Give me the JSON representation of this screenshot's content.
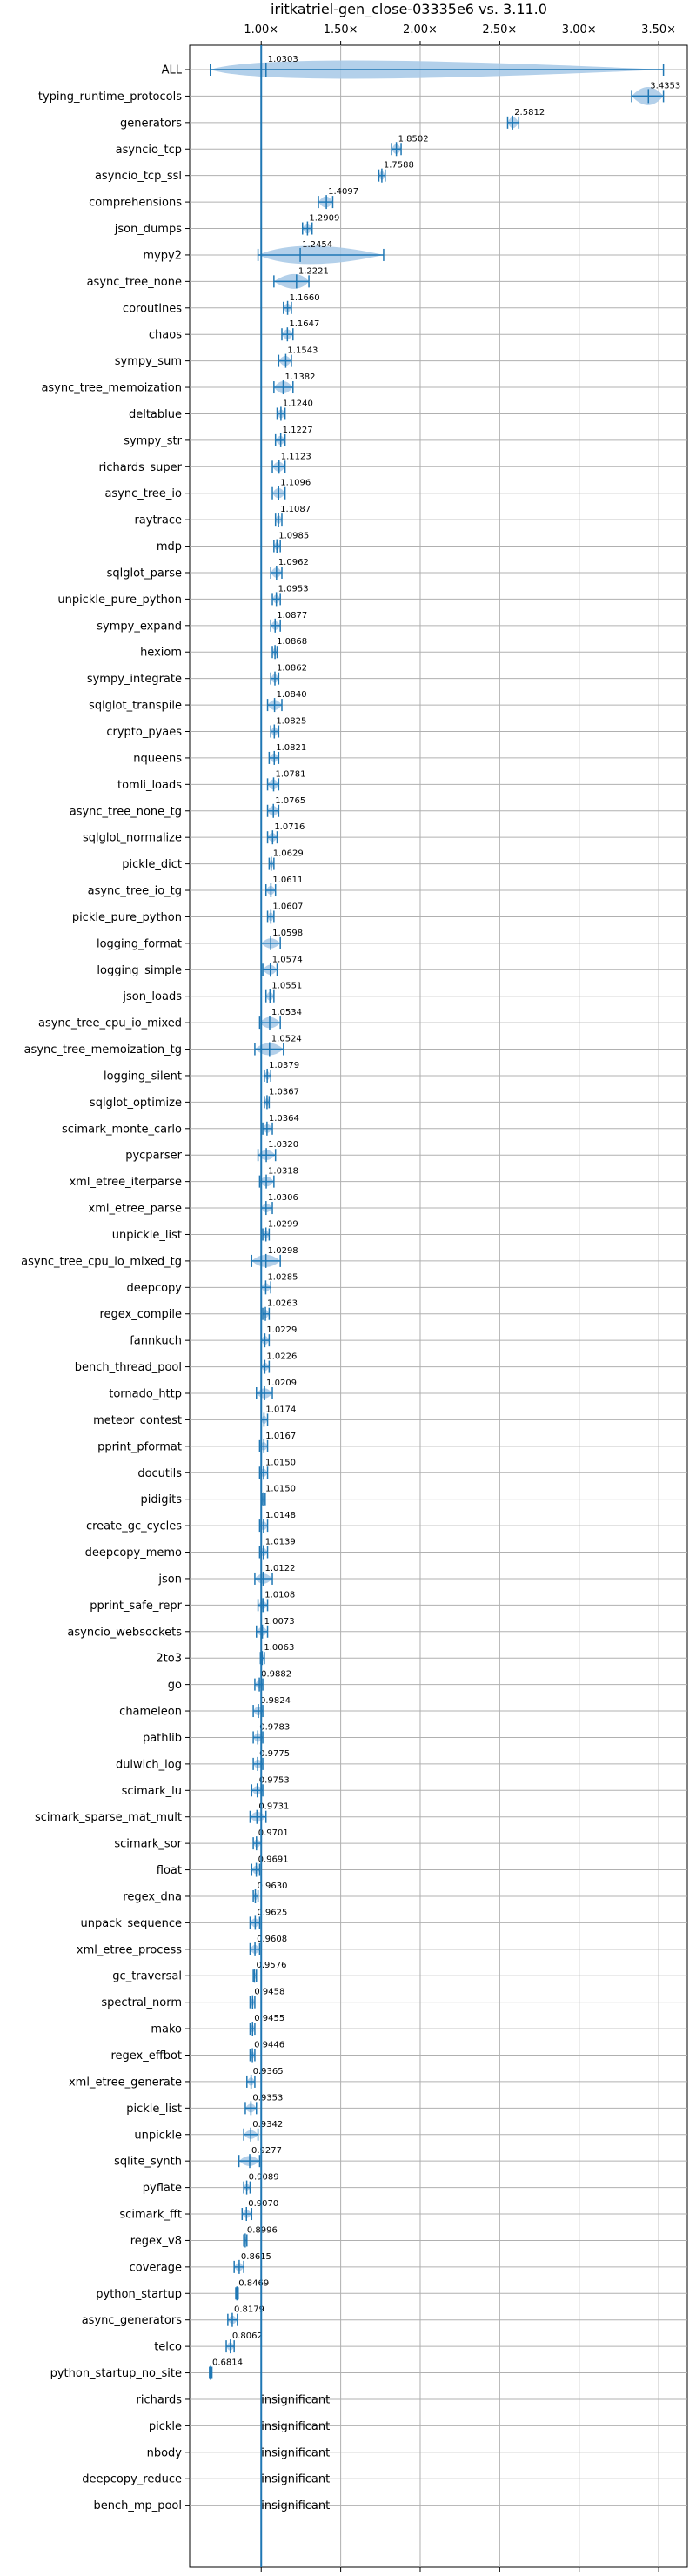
{
  "chart_data": {
    "type": "violin",
    "title": "iritkatriel-gen_close-03335e6 vs. 3.11.0",
    "x_ticks": [
      "1.00×",
      "1.50×",
      "2.00×",
      "2.50×",
      "3.00×",
      "3.50×"
    ],
    "x_tick_values": [
      1.0,
      1.5,
      2.0,
      2.5,
      3.0,
      3.5
    ],
    "xlim": [
      0.55,
      3.68
    ],
    "reference_line": 1.0,
    "grid": true,
    "colors": {
      "violin_fill": "#a6c8e6",
      "violin_line": "#1f77b4",
      "reference": "#1f77b4",
      "grid": "#b0b0b0"
    },
    "benchmarks": [
      {
        "name": "ALL",
        "value": 1.0303,
        "label": "1.0303",
        "min": 0.68,
        "max": 3.53,
        "spread": 0.14
      },
      {
        "name": "typing_runtime_protocols",
        "value": 3.4353,
        "label": "3.4353",
        "min": 3.33,
        "max": 3.53,
        "spread": 0.1
      },
      {
        "name": "generators",
        "value": 2.5812,
        "label": "2.5812",
        "min": 2.55,
        "max": 2.62,
        "spread": 0.04
      },
      {
        "name": "asyncio_tcp",
        "value": 1.8502,
        "label": "1.8502",
        "min": 1.82,
        "max": 1.88,
        "spread": 0.03
      },
      {
        "name": "asyncio_tcp_ssl",
        "value": 1.7588,
        "label": "1.7588",
        "min": 1.74,
        "max": 1.78,
        "spread": 0.02
      },
      {
        "name": "comprehensions",
        "value": 1.4097,
        "label": "1.4097",
        "min": 1.36,
        "max": 1.45,
        "spread": 0.04
      },
      {
        "name": "json_dumps",
        "value": 1.2909,
        "label": "1.2909",
        "min": 1.26,
        "max": 1.32,
        "spread": 0.03
      },
      {
        "name": "mypy2",
        "value": 1.2454,
        "label": "1.2454",
        "min": 0.98,
        "max": 1.77,
        "spread": 0.25
      },
      {
        "name": "async_tree_none",
        "value": 1.2221,
        "label": "1.2221",
        "min": 1.08,
        "max": 1.3,
        "spread": 0.07
      },
      {
        "name": "coroutines",
        "value": 1.166,
        "label": "1.1660",
        "min": 1.14,
        "max": 1.19,
        "spread": 0.02
      },
      {
        "name": "chaos",
        "value": 1.1647,
        "label": "1.1647",
        "min": 1.13,
        "max": 1.2,
        "spread": 0.03
      },
      {
        "name": "sympy_sum",
        "value": 1.1543,
        "label": "1.1543",
        "min": 1.11,
        "max": 1.19,
        "spread": 0.03
      },
      {
        "name": "async_tree_memoization",
        "value": 1.1382,
        "label": "1.1382",
        "min": 1.08,
        "max": 1.2,
        "spread": 0.05
      },
      {
        "name": "deltablue",
        "value": 1.124,
        "label": "1.1240",
        "min": 1.1,
        "max": 1.15,
        "spread": 0.02
      },
      {
        "name": "sympy_str",
        "value": 1.1227,
        "label": "1.1227",
        "min": 1.09,
        "max": 1.15,
        "spread": 0.02
      },
      {
        "name": "richards_super",
        "value": 1.1123,
        "label": "1.1123",
        "min": 1.07,
        "max": 1.15,
        "spread": 0.03
      },
      {
        "name": "async_tree_io",
        "value": 1.1096,
        "label": "1.1096",
        "min": 1.07,
        "max": 1.15,
        "spread": 0.03
      },
      {
        "name": "raytrace",
        "value": 1.1087,
        "label": "1.1087",
        "min": 1.09,
        "max": 1.13,
        "spread": 0.02
      },
      {
        "name": "mdp",
        "value": 1.0985,
        "label": "1.0985",
        "min": 1.08,
        "max": 1.12,
        "spread": 0.015
      },
      {
        "name": "sqlglot_parse",
        "value": 1.0962,
        "label": "1.0962",
        "min": 1.06,
        "max": 1.13,
        "spread": 0.03
      },
      {
        "name": "unpickle_pure_python",
        "value": 1.0953,
        "label": "1.0953",
        "min": 1.07,
        "max": 1.12,
        "spread": 0.02
      },
      {
        "name": "sympy_expand",
        "value": 1.0877,
        "label": "1.0877",
        "min": 1.06,
        "max": 1.12,
        "spread": 0.02
      },
      {
        "name": "hexiom",
        "value": 1.0868,
        "label": "1.0868",
        "min": 1.07,
        "max": 1.1,
        "spread": 0.015
      },
      {
        "name": "sympy_integrate",
        "value": 1.0862,
        "label": "1.0862",
        "min": 1.06,
        "max": 1.11,
        "spread": 0.02
      },
      {
        "name": "sqlglot_transpile",
        "value": 1.084,
        "label": "1.0840",
        "min": 1.04,
        "max": 1.13,
        "spread": 0.03
      },
      {
        "name": "crypto_pyaes",
        "value": 1.0825,
        "label": "1.0825",
        "min": 1.06,
        "max": 1.11,
        "spread": 0.02
      },
      {
        "name": "nqueens",
        "value": 1.0821,
        "label": "1.0821",
        "min": 1.05,
        "max": 1.11,
        "spread": 0.02
      },
      {
        "name": "tomli_loads",
        "value": 1.0781,
        "label": "1.0781",
        "min": 1.04,
        "max": 1.11,
        "spread": 0.03
      },
      {
        "name": "async_tree_none_tg",
        "value": 1.0765,
        "label": "1.0765",
        "min": 1.04,
        "max": 1.11,
        "spread": 0.03
      },
      {
        "name": "sqlglot_normalize",
        "value": 1.0716,
        "label": "1.0716",
        "min": 1.04,
        "max": 1.1,
        "spread": 0.02
      },
      {
        "name": "pickle_dict",
        "value": 1.0629,
        "label": "1.0629",
        "min": 1.05,
        "max": 1.08,
        "spread": 0.015
      },
      {
        "name": "async_tree_io_tg",
        "value": 1.0611,
        "label": "1.0611",
        "min": 1.03,
        "max": 1.09,
        "spread": 0.02
      },
      {
        "name": "pickle_pure_python",
        "value": 1.0607,
        "label": "1.0607",
        "min": 1.04,
        "max": 1.08,
        "spread": 0.02
      },
      {
        "name": "logging_format",
        "value": 1.0598,
        "label": "1.0598",
        "min": 1.0,
        "max": 1.12,
        "spread": 0.03
      },
      {
        "name": "logging_simple",
        "value": 1.0574,
        "label": "1.0574",
        "min": 1.01,
        "max": 1.1,
        "spread": 0.03
      },
      {
        "name": "json_loads",
        "value": 1.0551,
        "label": "1.0551",
        "min": 1.03,
        "max": 1.08,
        "spread": 0.02
      },
      {
        "name": "async_tree_cpu_io_mixed",
        "value": 1.0534,
        "label": "1.0534",
        "min": 0.99,
        "max": 1.12,
        "spread": 0.04
      },
      {
        "name": "async_tree_memoization_tg",
        "value": 1.0524,
        "label": "1.0524",
        "min": 0.96,
        "max": 1.14,
        "spread": 0.05
      },
      {
        "name": "logging_silent",
        "value": 1.0379,
        "label": "1.0379",
        "min": 1.02,
        "max": 1.06,
        "spread": 0.015
      },
      {
        "name": "sqlglot_optimize",
        "value": 1.0367,
        "label": "1.0367",
        "min": 1.02,
        "max": 1.05,
        "spread": 0.015
      },
      {
        "name": "scimark_monte_carlo",
        "value": 1.0364,
        "label": "1.0364",
        "min": 1.01,
        "max": 1.07,
        "spread": 0.02
      },
      {
        "name": "pycparser",
        "value": 1.032,
        "label": "1.0320",
        "min": 0.98,
        "max": 1.09,
        "spread": 0.03
      },
      {
        "name": "xml_etree_iterparse",
        "value": 1.0318,
        "label": "1.0318",
        "min": 0.99,
        "max": 1.08,
        "spread": 0.03
      },
      {
        "name": "xml_etree_parse",
        "value": 1.0306,
        "label": "1.0306",
        "min": 1.0,
        "max": 1.07,
        "spread": 0.02
      },
      {
        "name": "unpickle_list",
        "value": 1.0299,
        "label": "1.0299",
        "min": 1.01,
        "max": 1.05,
        "spread": 0.015
      },
      {
        "name": "async_tree_cpu_io_mixed_tg",
        "value": 1.0298,
        "label": "1.0298",
        "min": 0.94,
        "max": 1.12,
        "spread": 0.05
      },
      {
        "name": "deepcopy",
        "value": 1.0285,
        "label": "1.0285",
        "min": 1.0,
        "max": 1.06,
        "spread": 0.02
      },
      {
        "name": "regex_compile",
        "value": 1.0263,
        "label": "1.0263",
        "min": 1.01,
        "max": 1.05,
        "spread": 0.015
      },
      {
        "name": "fannkuch",
        "value": 1.0229,
        "label": "1.0229",
        "min": 1.0,
        "max": 1.05,
        "spread": 0.02
      },
      {
        "name": "bench_thread_pool",
        "value": 1.0226,
        "label": "1.0226",
        "min": 1.0,
        "max": 1.05,
        "spread": 0.015
      },
      {
        "name": "tornado_http",
        "value": 1.0209,
        "label": "1.0209",
        "min": 0.97,
        "max": 1.07,
        "spread": 0.03
      },
      {
        "name": "meteor_contest",
        "value": 1.0174,
        "label": "1.0174",
        "min": 1.0,
        "max": 1.04,
        "spread": 0.015
      },
      {
        "name": "pprint_pformat",
        "value": 1.0167,
        "label": "1.0167",
        "min": 0.99,
        "max": 1.04,
        "spread": 0.015
      },
      {
        "name": "docutils",
        "value": 1.015,
        "label": "1.0150",
        "min": 0.99,
        "max": 1.04,
        "spread": 0.015
      },
      {
        "name": "pidigits",
        "value": 1.015,
        "label": "1.0150",
        "min": 1.005,
        "max": 1.025,
        "spread": 0.01
      },
      {
        "name": "create_gc_cycles",
        "value": 1.0148,
        "label": "1.0148",
        "min": 0.99,
        "max": 1.04,
        "spread": 0.02
      },
      {
        "name": "deepcopy_memo",
        "value": 1.0139,
        "label": "1.0139",
        "min": 0.99,
        "max": 1.04,
        "spread": 0.015
      },
      {
        "name": "json",
        "value": 1.0122,
        "label": "1.0122",
        "min": 0.96,
        "max": 1.07,
        "spread": 0.03
      },
      {
        "name": "pprint_safe_repr",
        "value": 1.0108,
        "label": "1.0108",
        "min": 0.98,
        "max": 1.04,
        "spread": 0.015
      },
      {
        "name": "asyncio_websockets",
        "value": 1.0073,
        "label": "1.0073",
        "min": 0.97,
        "max": 1.04,
        "spread": 0.02
      },
      {
        "name": "2to3",
        "value": 1.0063,
        "label": "1.0063",
        "min": 0.995,
        "max": 1.02,
        "spread": 0.01
      },
      {
        "name": "go",
        "value": 0.9882,
        "label": "0.9882",
        "min": 0.96,
        "max": 1.01,
        "spread": 0.015
      },
      {
        "name": "chameleon",
        "value": 0.9824,
        "label": "0.9824",
        "min": 0.95,
        "max": 1.01,
        "spread": 0.02
      },
      {
        "name": "pathlib",
        "value": 0.9783,
        "label": "0.9783",
        "min": 0.95,
        "max": 1.01,
        "spread": 0.02
      },
      {
        "name": "dulwich_log",
        "value": 0.9775,
        "label": "0.9775",
        "min": 0.95,
        "max": 1.01,
        "spread": 0.02
      },
      {
        "name": "scimark_lu",
        "value": 0.9753,
        "label": "0.9753",
        "min": 0.94,
        "max": 1.01,
        "spread": 0.02
      },
      {
        "name": "scimark_sparse_mat_mult",
        "value": 0.9731,
        "label": "0.9731",
        "min": 0.93,
        "max": 1.03,
        "spread": 0.03
      },
      {
        "name": "scimark_sor",
        "value": 0.9701,
        "label": "0.9701",
        "min": 0.95,
        "max": 1.0,
        "spread": 0.015
      },
      {
        "name": "float",
        "value": 0.9691,
        "label": "0.9691",
        "min": 0.94,
        "max": 0.99,
        "spread": 0.015
      },
      {
        "name": "regex_dna",
        "value": 0.963,
        "label": "0.9630",
        "min": 0.95,
        "max": 0.98,
        "spread": 0.01
      },
      {
        "name": "unpack_sequence",
        "value": 0.9625,
        "label": "0.9625",
        "min": 0.93,
        "max": 0.99,
        "spread": 0.02
      },
      {
        "name": "xml_etree_process",
        "value": 0.9608,
        "label": "0.9608",
        "min": 0.93,
        "max": 0.99,
        "spread": 0.02
      },
      {
        "name": "gc_traversal",
        "value": 0.9576,
        "label": "0.9576",
        "min": 0.95,
        "max": 0.97,
        "spread": 0.008
      },
      {
        "name": "spectral_norm",
        "value": 0.9458,
        "label": "0.9458",
        "min": 0.93,
        "max": 0.96,
        "spread": 0.01
      },
      {
        "name": "mako",
        "value": 0.9455,
        "label": "0.9455",
        "min": 0.93,
        "max": 0.96,
        "spread": 0.01
      },
      {
        "name": "regex_effbot",
        "value": 0.9446,
        "label": "0.9446",
        "min": 0.93,
        "max": 0.96,
        "spread": 0.01
      },
      {
        "name": "xml_etree_generate",
        "value": 0.9365,
        "label": "0.9365",
        "min": 0.91,
        "max": 0.96,
        "spread": 0.015
      },
      {
        "name": "pickle_list",
        "value": 0.9353,
        "label": "0.9353",
        "min": 0.9,
        "max": 0.97,
        "spread": 0.02
      },
      {
        "name": "unpickle",
        "value": 0.9342,
        "label": "0.9342",
        "min": 0.89,
        "max": 0.98,
        "spread": 0.02
      },
      {
        "name": "sqlite_synth",
        "value": 0.9277,
        "label": "0.9277",
        "min": 0.86,
        "max": 0.99,
        "spread": 0.03
      },
      {
        "name": "pyflate",
        "value": 0.9089,
        "label": "0.9089",
        "min": 0.89,
        "max": 0.93,
        "spread": 0.012
      },
      {
        "name": "scimark_fft",
        "value": 0.907,
        "label": "0.9070",
        "min": 0.88,
        "max": 0.94,
        "spread": 0.015
      },
      {
        "name": "regex_v8",
        "value": 0.8996,
        "label": "0.8996",
        "min": 0.89,
        "max": 0.91,
        "spread": 0.008
      },
      {
        "name": "coverage",
        "value": 0.8615,
        "label": "0.8615",
        "min": 0.83,
        "max": 0.89,
        "spread": 0.015
      },
      {
        "name": "python_startup",
        "value": 0.8469,
        "label": "0.8469",
        "min": 0.84,
        "max": 0.855,
        "spread": 0.006
      },
      {
        "name": "async_generators",
        "value": 0.8179,
        "label": "0.8179",
        "min": 0.79,
        "max": 0.85,
        "spread": 0.015
      },
      {
        "name": "telco",
        "value": 0.8062,
        "label": "0.8062",
        "min": 0.78,
        "max": 0.83,
        "spread": 0.015
      },
      {
        "name": "python_startup_no_site",
        "value": 0.6814,
        "label": "0.6814",
        "min": 0.675,
        "max": 0.69,
        "spread": 0.005
      },
      {
        "name": "richards",
        "value": null,
        "label": "insignificant"
      },
      {
        "name": "pickle",
        "value": null,
        "label": "insignificant"
      },
      {
        "name": "nbody",
        "value": null,
        "label": "insignificant"
      },
      {
        "name": "deepcopy_reduce",
        "value": null,
        "label": "insignificant"
      },
      {
        "name": "bench_mp_pool",
        "value": null,
        "label": "insignificant"
      }
    ]
  }
}
